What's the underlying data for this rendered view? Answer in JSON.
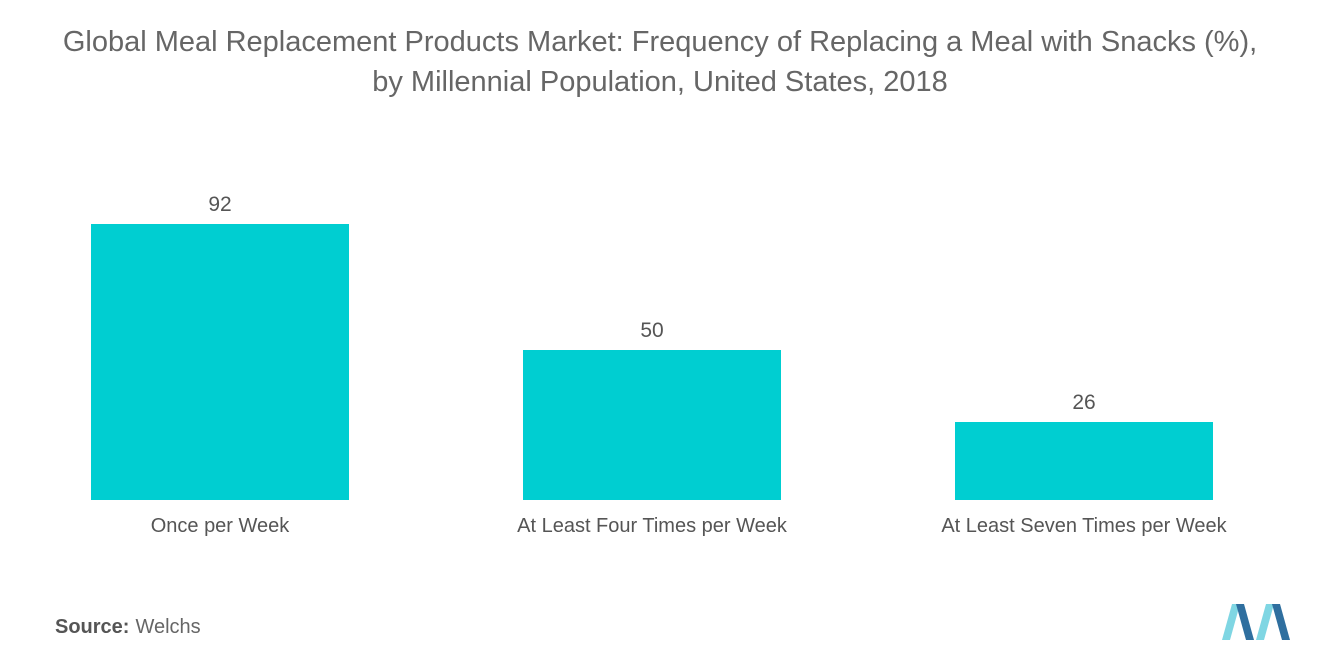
{
  "title_line1": "Global Meal Replacement Products Market: Frequency of Replacing a Meal with Snacks (%),",
  "title_line2": "by Millennial Population, United States, 2018",
  "source": {
    "label": "Source:",
    "value": "Welchs"
  },
  "colors": {
    "bar": "#00CED1",
    "text": "#555555",
    "logo_light": "#7FD6E3",
    "logo_dark": "#2F6F9F"
  },
  "chart_data": {
    "type": "bar",
    "categories": [
      "Once per Week",
      "At Least Four Times per Week",
      "At Least Seven Times per Week"
    ],
    "values": [
      92,
      50,
      26
    ],
    "data_labels": [
      "92",
      "50",
      "26"
    ],
    "title": "Global Meal Replacement Products Market: Frequency of Replacing a Meal with Snacks (%), by Millennial Population, United States, 2018",
    "xlabel": "",
    "ylabel": "",
    "ylim": [
      0,
      100
    ],
    "grid": false,
    "legend": "none"
  }
}
